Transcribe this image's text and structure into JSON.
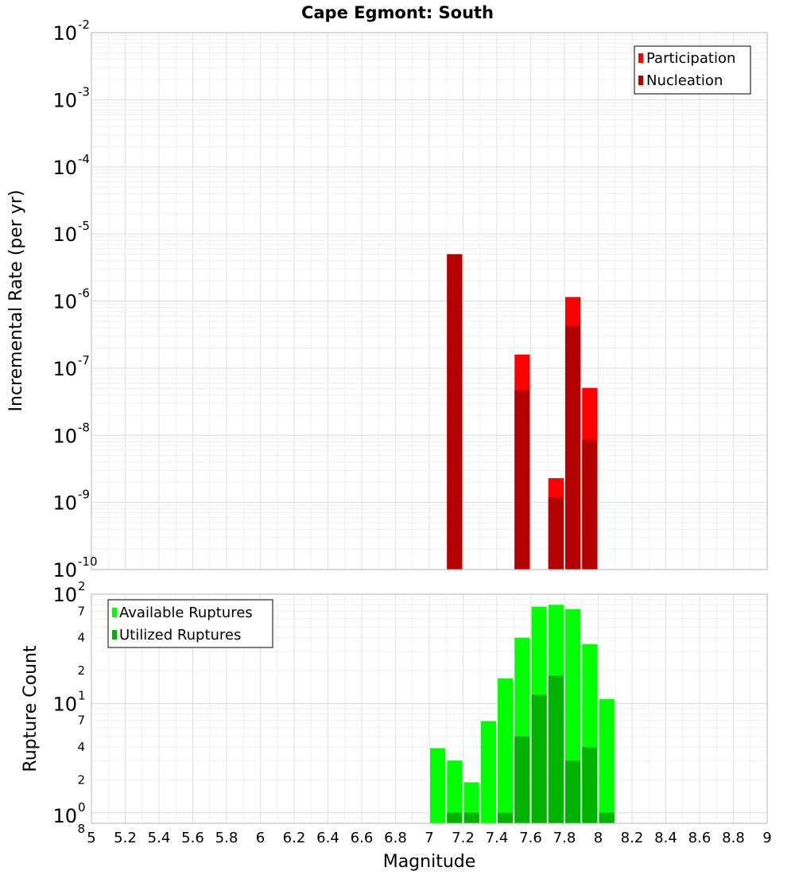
{
  "chart_data": [
    {
      "type": "bar",
      "title": "Cape Egmont: South",
      "xlabel": "",
      "ylabel": "Incremental Rate (per yr)",
      "yscale": "log",
      "xlim": [
        5,
        9
      ],
      "ylim": [
        1e-10,
        0.01
      ],
      "bin_width": 0.1,
      "y_ticks": [
        {
          "base": "10",
          "exp": "-10"
        },
        {
          "base": "10",
          "exp": "-9"
        },
        {
          "base": "10",
          "exp": "-8"
        },
        {
          "base": "10",
          "exp": "-7"
        },
        {
          "base": "10",
          "exp": "-6"
        },
        {
          "base": "10",
          "exp": "-5"
        },
        {
          "base": "10",
          "exp": "-4"
        },
        {
          "base": "10",
          "exp": "-3"
        },
        {
          "base": "10",
          "exp": "-2"
        }
      ],
      "legend_position": "top-right",
      "series": [
        {
          "name": "Participation",
          "color": "#ff0000",
          "x": [
            7.15,
            7.55,
            7.75,
            7.85,
            7.95
          ],
          "values": [
            5e-06,
            1.6e-07,
            2.3e-09,
            1.15e-06,
            5.1e-08
          ]
        },
        {
          "name": "Nucleation",
          "color": "#b30000",
          "x": [
            7.15,
            7.55,
            7.75,
            7.85,
            7.95
          ],
          "values": [
            5e-06,
            4.7e-08,
            1.2e-09,
            4.3e-07,
            8.6e-09
          ]
        }
      ]
    },
    {
      "type": "bar",
      "title": "",
      "xlabel": "Magnitude",
      "ylabel": "Rupture Count",
      "yscale": "log",
      "xlim": [
        5,
        9
      ],
      "ylim": [
        0.8,
        100
      ],
      "bin_width": 0.1,
      "x_ticks": [
        "5",
        "5.2",
        "5.4",
        "5.6",
        "5.8",
        "6",
        "6.2",
        "6.4",
        "6.6",
        "6.8",
        "7",
        "7.2",
        "7.4",
        "7.6",
        "7.8",
        "8",
        "8.2",
        "8.4",
        "8.6",
        "8.8",
        "9"
      ],
      "y_major_ticks": [
        {
          "value": 1,
          "base": "10",
          "exp": "0"
        },
        {
          "value": 10,
          "base": "10",
          "exp": "1"
        },
        {
          "value": 100,
          "base": "10",
          "exp": "2"
        }
      ],
      "y_minor_ticks": [
        {
          "value": 0.8,
          "label": "8"
        },
        {
          "value": 2,
          "label": "2"
        },
        {
          "value": 4,
          "label": "4"
        },
        {
          "value": 7,
          "label": "7"
        },
        {
          "value": 20,
          "label": "2"
        },
        {
          "value": 40,
          "label": "4"
        },
        {
          "value": 70,
          "label": "7"
        }
      ],
      "legend_position": "top-left",
      "series": [
        {
          "name": "Available Ruptures",
          "color": "#00ff00",
          "x": [
            7.05,
            7.15,
            7.25,
            7.35,
            7.45,
            7.55,
            7.65,
            7.75,
            7.85,
            7.95,
            8.05
          ],
          "values": [
            3.9,
            3.0,
            1.9,
            6.9,
            17.0,
            40.0,
            77.0,
            80.0,
            73.0,
            35.0,
            11.0
          ]
        },
        {
          "name": "Utilized Ruptures",
          "color": "#00b300",
          "x": [
            7.15,
            7.25,
            7.45,
            7.55,
            7.65,
            7.75,
            7.85,
            7.95,
            8.05
          ],
          "values": [
            1,
            1,
            1,
            5,
            12,
            18,
            3,
            4,
            1
          ]
        }
      ]
    }
  ]
}
